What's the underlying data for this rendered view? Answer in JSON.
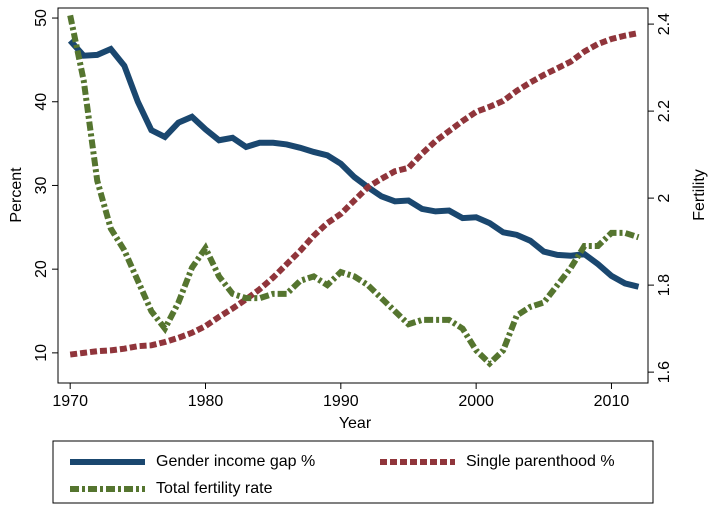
{
  "chart_data": {
    "type": "line",
    "x_label": "Year",
    "y_label": "Percent",
    "y2_label": "Fertility",
    "x": [
      1970,
      1971,
      1972,
      1973,
      1974,
      1975,
      1976,
      1977,
      1978,
      1979,
      1980,
      1981,
      1982,
      1983,
      1984,
      1985,
      1986,
      1987,
      1988,
      1989,
      1990,
      1991,
      1992,
      1993,
      1994,
      1995,
      1996,
      1997,
      1998,
      1999,
      2000,
      2001,
      2002,
      2003,
      2004,
      2005,
      2006,
      2007,
      2008,
      2009,
      2010,
      2011,
      2012
    ],
    "xlim": [
      1969.1,
      2012.7
    ],
    "xticks": [
      1970,
      1980,
      1990,
      2000,
      2010
    ],
    "ylim": [
      6.4,
      51.2
    ],
    "yticks": [
      10,
      20,
      30,
      40,
      50
    ],
    "y2lim": [
      1.575,
      2.437
    ],
    "y2ticks": [
      1.6,
      1.8,
      2,
      2.2,
      2.4
    ],
    "legend": "bottom",
    "series": [
      {
        "name": "Gender income gap %",
        "color": "#1a476f",
        "style": "solid",
        "values": [
          47.3,
          45.5,
          45.6,
          46.3,
          44.3,
          40,
          36.6,
          35.8,
          37.5,
          38.2,
          36.7,
          35.4,
          35.7,
          34.6,
          35.1,
          35.1,
          34.9,
          34.5,
          34,
          33.6,
          32.6,
          31,
          29.8,
          28.7,
          28.1,
          28.2,
          27.2,
          26.9,
          27,
          26.1,
          26.2,
          25.5,
          24.4,
          24.1,
          23.4,
          22.1,
          21.7,
          21.6,
          21.8,
          20.6,
          19.2,
          18.3,
          17.9
        ]
      },
      {
        "name": "Single parenthood %",
        "color": "#90353b",
        "style": "dash",
        "values": [
          9.8,
          10,
          10.2,
          10.3,
          10.5,
          10.8,
          10.9,
          11.3,
          11.8,
          12.4,
          13.2,
          14.3,
          15.3,
          16.4,
          17.6,
          19,
          20.6,
          22.2,
          24,
          25.5,
          26.6,
          28.2,
          29.8,
          30.8,
          31.7,
          32.1,
          33.8,
          35.3,
          36.5,
          37.7,
          38.8,
          39.4,
          40.1,
          41.3,
          42.3,
          43.2,
          44,
          44.8,
          46,
          46.9,
          47.5,
          47.9,
          48.2
        ]
      },
      {
        "name": "Total fertility rate",
        "color": "#55752f",
        "style": "dashdot",
        "axis": "y2",
        "values": [
          2.42,
          2.27,
          2.04,
          1.93,
          1.88,
          1.81,
          1.74,
          1.7,
          1.76,
          1.84,
          1.885,
          1.82,
          1.78,
          1.77,
          1.77,
          1.78,
          1.78,
          1.81,
          1.82,
          1.8,
          1.83,
          1.82,
          1.8,
          1.77,
          1.74,
          1.71,
          1.72,
          1.72,
          1.72,
          1.7,
          1.65,
          1.62,
          1.65,
          1.73,
          1.75,
          1.76,
          1.8,
          1.84,
          1.89,
          1.89,
          1.92,
          1.92,
          1.91
        ]
      }
    ]
  }
}
